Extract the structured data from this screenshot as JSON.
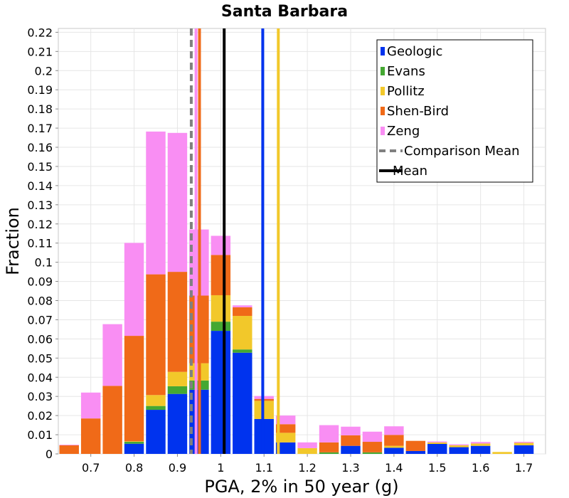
{
  "chart_data": {
    "type": "bar",
    "stacked": true,
    "title": "Santa Barbara",
    "xlabel": "PGA, 2% in 50 year (g)",
    "ylabel": "Fraction",
    "xlim": [
      0.625,
      1.75
    ],
    "ylim": [
      0,
      0.222
    ],
    "bin_width": 0.05,
    "grid": true,
    "legend_position": "top-right",
    "x_ticks": [
      "0.7",
      "0.8",
      "0.9",
      "1",
      "1.1",
      "1.2",
      "1.3",
      "1.4",
      "1.5",
      "1.6",
      "1.7"
    ],
    "x_tick_values": [
      0.7,
      0.8,
      0.9,
      1.0,
      1.1,
      1.2,
      1.3,
      1.4,
      1.5,
      1.6,
      1.7
    ],
    "y_ticks": [
      "0",
      "0.01",
      "0.02",
      "0.03",
      "0.04",
      "0.05",
      "0.06",
      "0.07",
      "0.08",
      "0.09",
      "0.1",
      "0.11",
      "0.12",
      "0.13",
      "0.14",
      "0.15",
      "0.16",
      "0.17",
      "0.18",
      "0.19",
      "0.2",
      "0.21",
      "0.22"
    ],
    "y_tick_values": [
      0,
      0.01,
      0.02,
      0.03,
      0.04,
      0.05,
      0.06,
      0.07,
      0.08,
      0.09,
      0.1,
      0.11,
      0.12,
      0.13,
      0.14,
      0.15,
      0.16,
      0.17,
      0.18,
      0.19,
      0.2,
      0.21,
      0.22
    ],
    "bins": [
      0.65,
      0.7,
      0.75,
      0.8,
      0.85,
      0.9,
      0.95,
      1.0,
      1.05,
      1.1,
      1.15,
      1.2,
      1.25,
      1.3,
      1.35,
      1.4,
      1.45,
      1.5,
      1.55,
      1.6,
      1.65,
      1.7
    ],
    "series": [
      {
        "name": "Geologic",
        "color": "#0033ee",
        "values": [
          0,
          0,
          0,
          0.0053,
          0.023,
          0.0313,
          0.0335,
          0.0642,
          0.0528,
          0.0182,
          0.006,
          0,
          0,
          0.0042,
          0,
          0.0032,
          0.0015,
          0.0052,
          0.0035,
          0.0042,
          0,
          0.0045
        ]
      },
      {
        "name": "Evans",
        "color": "#44a832",
        "values": [
          0,
          0,
          0,
          0.001,
          0.002,
          0.004,
          0.0048,
          0.0048,
          0.0017,
          0,
          0,
          0,
          0.0008,
          0,
          0.0008,
          0,
          0,
          0,
          0,
          0,
          0,
          0
        ]
      },
      {
        "name": "Pollitz",
        "color": "#f2c82a",
        "values": [
          0,
          0,
          0,
          0.0003,
          0.0057,
          0.0075,
          0.009,
          0.0138,
          0.0175,
          0.0095,
          0.005,
          0.003,
          0,
          0,
          0,
          0.001,
          0,
          0.0008,
          0.001,
          0.0012,
          0.001,
          0.0013
        ]
      },
      {
        "name": "Shen-Bird",
        "color": "#f06a18",
        "values": [
          0.0045,
          0.0185,
          0.0355,
          0.055,
          0.063,
          0.0522,
          0.0353,
          0.021,
          0.0045,
          0.001,
          0.0045,
          0,
          0.0052,
          0.0055,
          0.0055,
          0.0057,
          0.0053,
          0,
          0,
          0,
          0,
          0
        ]
      },
      {
        "name": "Zeng",
        "color": "#f98ef3",
        "values": [
          0.0003,
          0.0135,
          0.0322,
          0.0485,
          0.0745,
          0.0725,
          0.0345,
          0.01,
          0.001,
          0.0015,
          0.0045,
          0.003,
          0.009,
          0.0045,
          0.0053,
          0.0045,
          0,
          0.0005,
          0.0005,
          0.0008,
          0,
          0.0005
        ]
      }
    ],
    "lines": [
      {
        "name": "Comparison Mean",
        "x": 0.932,
        "color": "#808080",
        "dashed": true
      },
      {
        "name": "Mean",
        "x": 1.008,
        "color": "#000000",
        "dashed": false
      },
      {
        "name": "Geologic",
        "x": 1.097,
        "color": "#0033ee",
        "dashed": false,
        "legend": false
      },
      {
        "name": "Pollitz",
        "x": 1.133,
        "color": "#f2c82a",
        "dashed": false,
        "legend": false
      },
      {
        "name": "Shen-Bird",
        "x": 0.951,
        "color": "#f06a18",
        "dashed": false,
        "legend": false
      },
      {
        "name": "Zeng",
        "x": 0.943,
        "color": "#f98ef3",
        "dashed": false,
        "legend": false
      }
    ],
    "legend": [
      {
        "label": "Geologic",
        "color": "#0033ee",
        "kind": "box"
      },
      {
        "label": "Evans",
        "color": "#44a832",
        "kind": "box"
      },
      {
        "label": "Pollitz",
        "color": "#f2c82a",
        "kind": "box"
      },
      {
        "label": "Shen-Bird",
        "color": "#f06a18",
        "kind": "box"
      },
      {
        "label": "Zeng",
        "color": "#f98ef3",
        "kind": "box"
      },
      {
        "label": "Comparison Mean",
        "color": "#808080",
        "kind": "dashed"
      },
      {
        "label": "Mean",
        "color": "#000000",
        "kind": "line"
      }
    ]
  }
}
